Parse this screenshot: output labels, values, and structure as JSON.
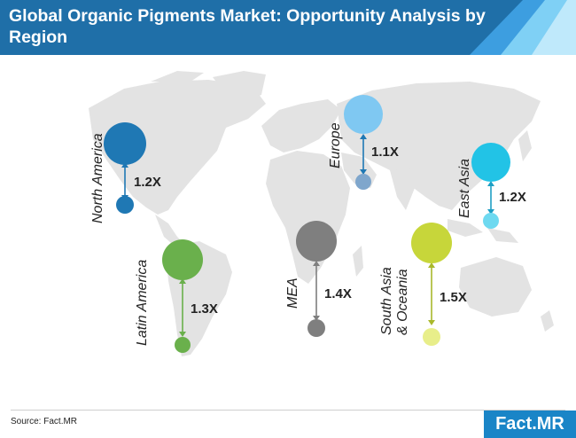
{
  "header": {
    "title": "Global Organic Pigments Market: Opportunity Analysis by Region"
  },
  "regions": [
    {
      "name": "North America",
      "multiplier": "1.2X",
      "color": "#1f78b4"
    },
    {
      "name": "Latin America",
      "multiplier": "1.3X",
      "color": "#6ab04c"
    },
    {
      "name": "Europe",
      "multiplier": "1.1X",
      "color": "#7fc8f2"
    },
    {
      "name": "MEA",
      "multiplier": "1.4X",
      "color": "#7f7f7f"
    },
    {
      "name": "South Asia\n& Oceania",
      "multiplier": "1.5X",
      "color": "#c7d63a"
    },
    {
      "name": "East Asia",
      "multiplier": "1.2X",
      "color": "#22c3e6"
    }
  ],
  "footer": {
    "source": "Source: Fact.MR",
    "logo": "Fact.MR"
  },
  "colors": {
    "header_bg": "#1f6fa8",
    "map_fill": "#e3e3e3",
    "logo_bg": "#1a85c7"
  }
}
